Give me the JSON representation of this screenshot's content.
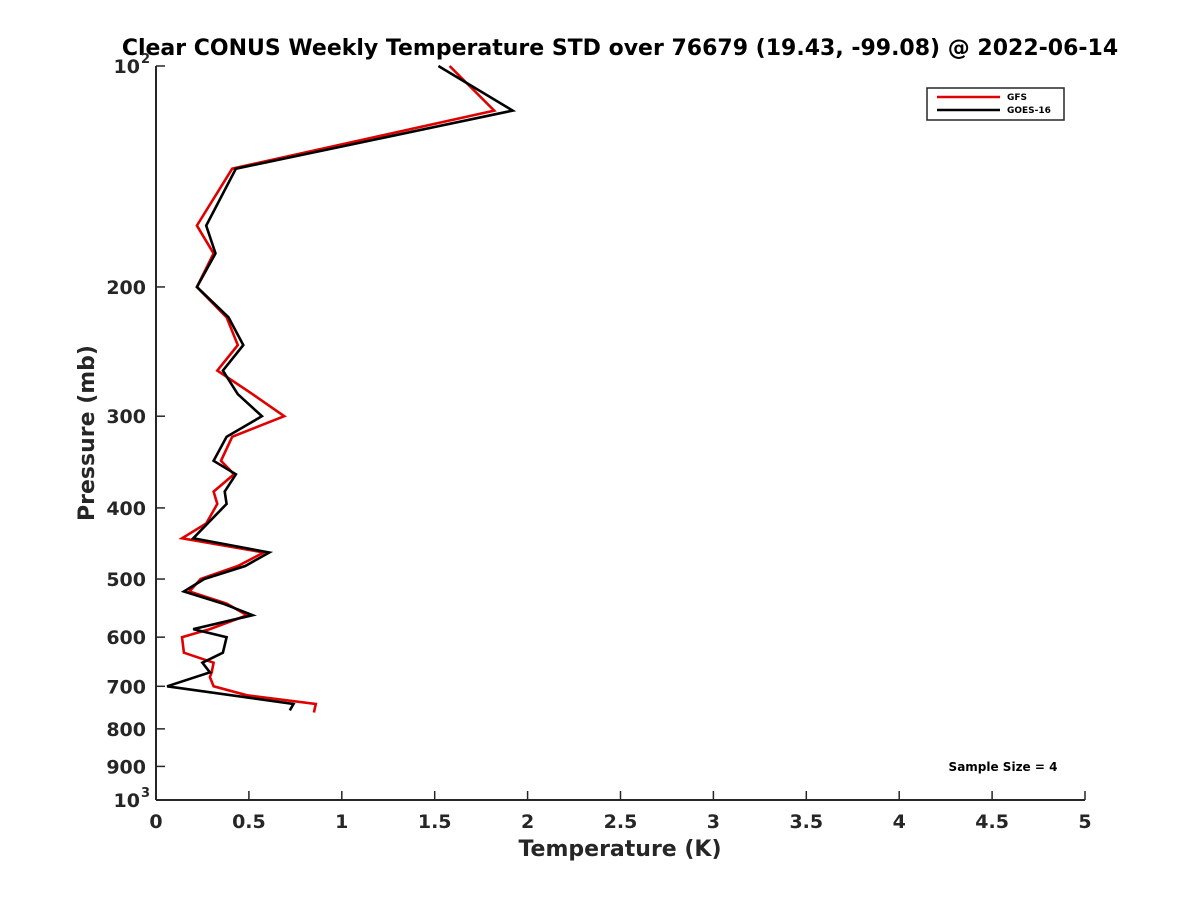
{
  "chart_data": {
    "type": "line",
    "title": "Clear CONUS Weekly Temperature STD over 76679 (19.43, -99.08) @ 2022-06-14",
    "xlabel": "Temperature (K)",
    "ylabel": "Pressure (mb)",
    "xlim": [
      0,
      5
    ],
    "ylim": [
      100,
      1000
    ],
    "yscale": "log",
    "yreversed": true,
    "x_ticks": [
      "0",
      "0.5",
      "1",
      "1.5",
      "2",
      "2.5",
      "3",
      "3.5",
      "4",
      "4.5",
      "5"
    ],
    "x_tick_values": [
      0,
      0.5,
      1,
      1.5,
      2,
      2.5,
      3,
      3.5,
      4,
      4.5,
      5
    ],
    "y_ticks": [
      {
        "value": 100,
        "label": "10",
        "exp": "2"
      },
      {
        "value": 200,
        "label": "200"
      },
      {
        "value": 300,
        "label": "300"
      },
      {
        "value": 400,
        "label": "400"
      },
      {
        "value": 500,
        "label": "500"
      },
      {
        "value": 600,
        "label": "600"
      },
      {
        "value": 700,
        "label": "700"
      },
      {
        "value": 800,
        "label": "800"
      },
      {
        "value": 900,
        "label": "900"
      },
      {
        "value": 1000,
        "label": "10",
        "exp": "3"
      }
    ],
    "grid": false,
    "legend_position": "top-right",
    "series": [
      {
        "name": "GFS",
        "color": "#e00000",
        "points": [
          [
            1.58,
            100
          ],
          [
            1.82,
            115
          ],
          [
            0.41,
            138
          ],
          [
            0.22,
            165
          ],
          [
            0.31,
            180
          ],
          [
            0.22,
            200
          ],
          [
            0.38,
            220
          ],
          [
            0.44,
            240
          ],
          [
            0.33,
            260
          ],
          [
            0.52,
            280
          ],
          [
            0.69,
            300
          ],
          [
            0.41,
            320
          ],
          [
            0.35,
            345
          ],
          [
            0.42,
            360
          ],
          [
            0.31,
            380
          ],
          [
            0.33,
            395
          ],
          [
            0.27,
            420
          ],
          [
            0.14,
            440
          ],
          [
            0.58,
            460
          ],
          [
            0.44,
            480
          ],
          [
            0.24,
            500
          ],
          [
            0.18,
            520
          ],
          [
            0.38,
            540
          ],
          [
            0.49,
            560
          ],
          [
            0.29,
            585
          ],
          [
            0.14,
            600
          ],
          [
            0.15,
            630
          ],
          [
            0.31,
            650
          ],
          [
            0.3,
            670
          ],
          [
            0.29,
            680
          ],
          [
            0.31,
            700
          ],
          [
            0.49,
            720
          ],
          [
            0.86,
            740
          ],
          [
            0.85,
            760
          ]
        ]
      },
      {
        "name": "GOES-16",
        "color": "#000000",
        "points": [
          [
            1.52,
            100
          ],
          [
            1.92,
            115
          ],
          [
            0.43,
            138
          ],
          [
            0.27,
            165
          ],
          [
            0.32,
            180
          ],
          [
            0.22,
            200
          ],
          [
            0.39,
            220
          ],
          [
            0.47,
            240
          ],
          [
            0.36,
            260
          ],
          [
            0.44,
            280
          ],
          [
            0.57,
            300
          ],
          [
            0.38,
            320
          ],
          [
            0.31,
            345
          ],
          [
            0.43,
            360
          ],
          [
            0.37,
            380
          ],
          [
            0.38,
            395
          ],
          [
            0.2,
            440
          ],
          [
            0.61,
            460
          ],
          [
            0.48,
            480
          ],
          [
            0.26,
            500
          ],
          [
            0.15,
            520
          ],
          [
            0.36,
            540
          ],
          [
            0.52,
            560
          ],
          [
            0.2,
            585
          ],
          [
            0.38,
            600
          ],
          [
            0.36,
            630
          ],
          [
            0.25,
            650
          ],
          [
            0.29,
            670
          ],
          [
            0.06,
            700
          ],
          [
            0.74,
            740
          ],
          [
            0.72,
            755
          ]
        ]
      }
    ],
    "annotations": [
      "Sample Size = 4"
    ]
  }
}
